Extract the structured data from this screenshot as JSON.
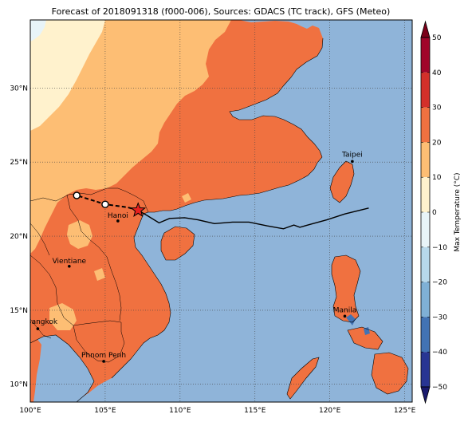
{
  "title": "Forecast of 2018091318 (f000-006), Sources: GDACS (TC track), GFS (Meteo)",
  "map": {
    "lon_ticks": [
      "100°E",
      "105°E",
      "110°E",
      "115°E",
      "120°E",
      "125°E"
    ],
    "lat_ticks": [
      "30°N",
      "25°N",
      "20°N",
      "15°N",
      "10°N"
    ],
    "extent": {
      "lon": [
        100,
        125.5
      ],
      "lat": [
        8.8,
        34.6
      ]
    }
  },
  "cities": [
    {
      "name": "Taipei",
      "lon": 121.5,
      "lat": 25.05
    },
    {
      "name": "Hanoi",
      "lon": 105.85,
      "lat": 21.03
    },
    {
      "name": "Vientiane",
      "lon": 102.6,
      "lat": 17.97
    },
    {
      "name": "Manila",
      "lon": 121.0,
      "lat": 14.6
    },
    {
      "name": "Bangkok",
      "lon": 100.5,
      "lat": 13.75
    },
    {
      "name": "Phnom Penh",
      "lon": 104.9,
      "lat": 11.55
    }
  ],
  "track": {
    "past": [
      [
        122.6,
        21.9
      ],
      [
        121.0,
        21.5
      ],
      [
        119.8,
        21.1
      ],
      [
        118.7,
        20.8
      ],
      [
        118.0,
        20.6
      ],
      [
        117.6,
        20.75
      ],
      [
        116.9,
        20.5
      ],
      [
        115.8,
        20.7
      ],
      [
        114.6,
        20.95
      ],
      [
        113.5,
        20.95
      ],
      [
        112.3,
        20.85
      ],
      [
        111.2,
        21.1
      ],
      [
        110.3,
        21.25
      ],
      [
        109.3,
        21.2
      ],
      [
        108.6,
        20.9
      ],
      [
        107.8,
        21.4
      ],
      [
        107.2,
        21.75
      ]
    ],
    "forecast": [
      [
        107.2,
        21.75
      ],
      [
        106.5,
        21.95
      ],
      [
        105.0,
        22.15
      ],
      [
        103.1,
        22.75
      ]
    ],
    "current_position": [
      107.2,
      21.75
    ],
    "forecast_points": [
      [
        105.0,
        22.15
      ],
      [
        103.1,
        22.75
      ]
    ]
  },
  "colorbar": {
    "label": "Max Temperature (°C)",
    "ticks": [
      "50",
      "40",
      "30",
      "20",
      "10",
      "0",
      "−10",
      "−20",
      "−30",
      "−40",
      "−50"
    ],
    "tick_values": [
      50,
      40,
      30,
      20,
      10,
      0,
      -10,
      -20,
      -30,
      -40,
      -50
    ],
    "colors": {
      "ocean": "#8fb4d9",
      "warm_land": "#f07140",
      "mild_land": "#fdbe74",
      "cool_land": "#fff2cd",
      "cold_land": "#e8f4f8",
      "track": "#000000",
      "marker": "#e8201e"
    },
    "bands": [
      {
        "from": 40,
        "to": 50,
        "color": "#a0052a"
      },
      {
        "from": 30,
        "to": 40,
        "color": "#d3302a"
      },
      {
        "from": 20,
        "to": 30,
        "color": "#f07140"
      },
      {
        "from": 10,
        "to": 20,
        "color": "#fdbe74"
      },
      {
        "from": 0,
        "to": 10,
        "color": "#fff2cd"
      },
      {
        "from": -10,
        "to": 0,
        "color": "#e8f4f8"
      },
      {
        "from": -20,
        "to": -10,
        "color": "#b7d8ea"
      },
      {
        "from": -30,
        "to": -20,
        "color": "#7fb0d5"
      },
      {
        "from": -40,
        "to": -30,
        "color": "#4273b4"
      },
      {
        "from": -50,
        "to": -40,
        "color": "#283593"
      }
    ]
  }
}
